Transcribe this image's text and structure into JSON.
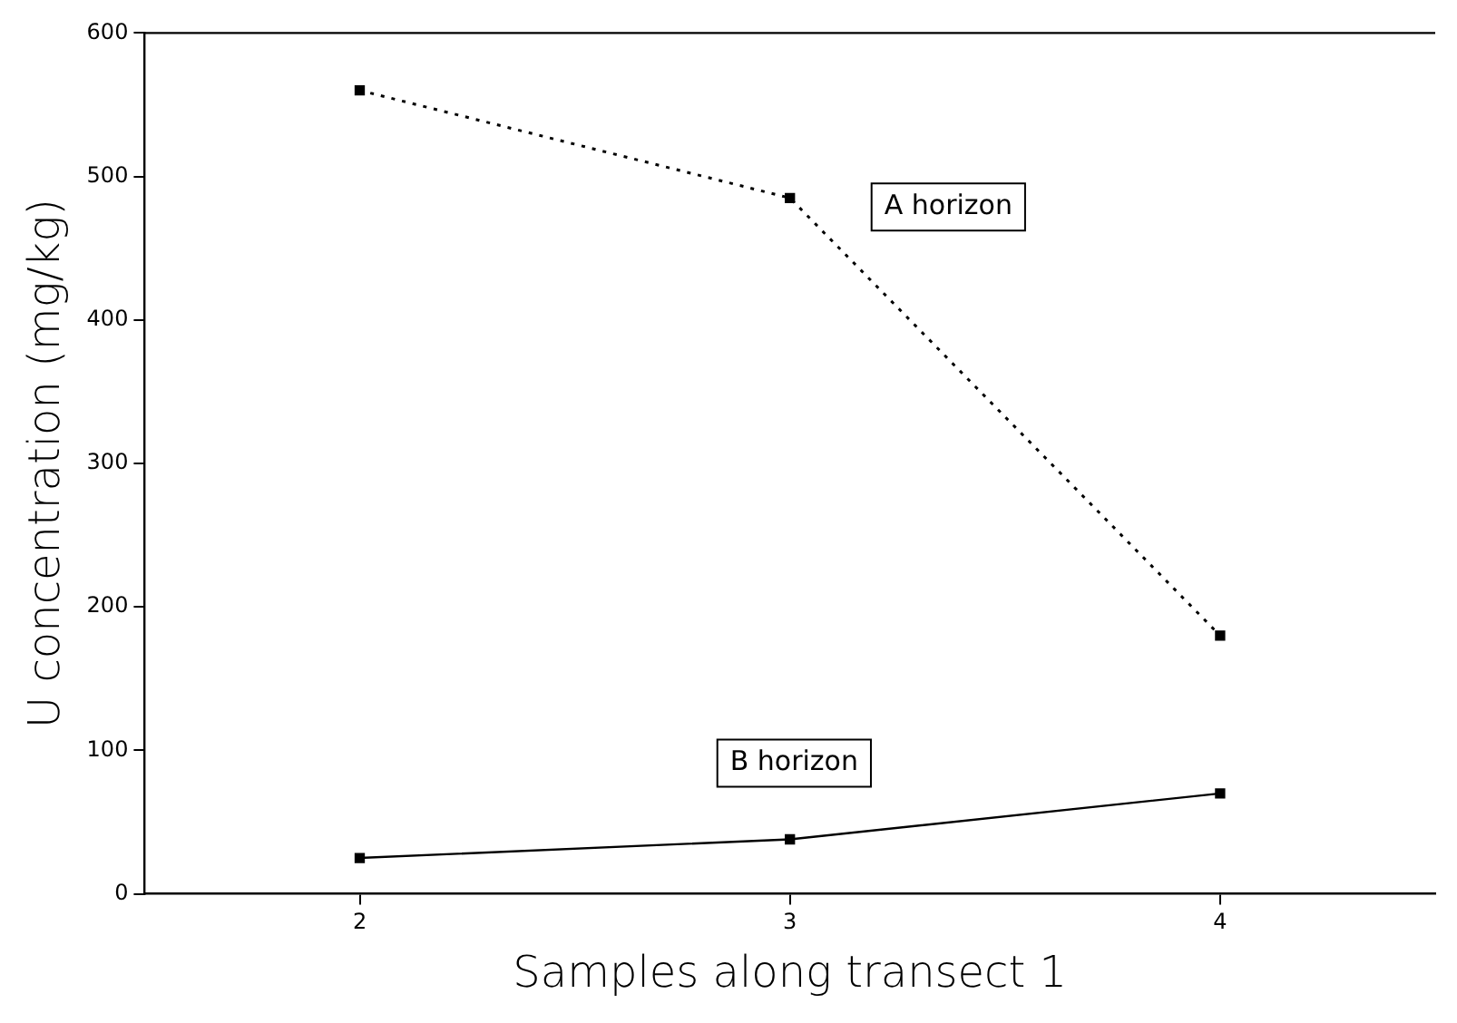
{
  "chart_data": {
    "type": "line",
    "xlabel": "Samples along transect 1",
    "ylabel": "U concentration (mg/kg)",
    "x": [
      2,
      3,
      4
    ],
    "xlim": [
      1.5,
      4.5
    ],
    "xticks": [
      2,
      3,
      4
    ],
    "ylim": [
      0,
      600
    ],
    "yticks": [
      0,
      100,
      200,
      300,
      400,
      500,
      600
    ],
    "grid": false,
    "legend": false,
    "marker": "square",
    "series": [
      {
        "name": "A horizon",
        "color": "#000000",
        "values": [
          560,
          485,
          180
        ],
        "line_style": "dotted"
      },
      {
        "name": "B horizon",
        "color": "#000000",
        "values": [
          25,
          38,
          70
        ],
        "line_style": "solid"
      }
    ]
  }
}
